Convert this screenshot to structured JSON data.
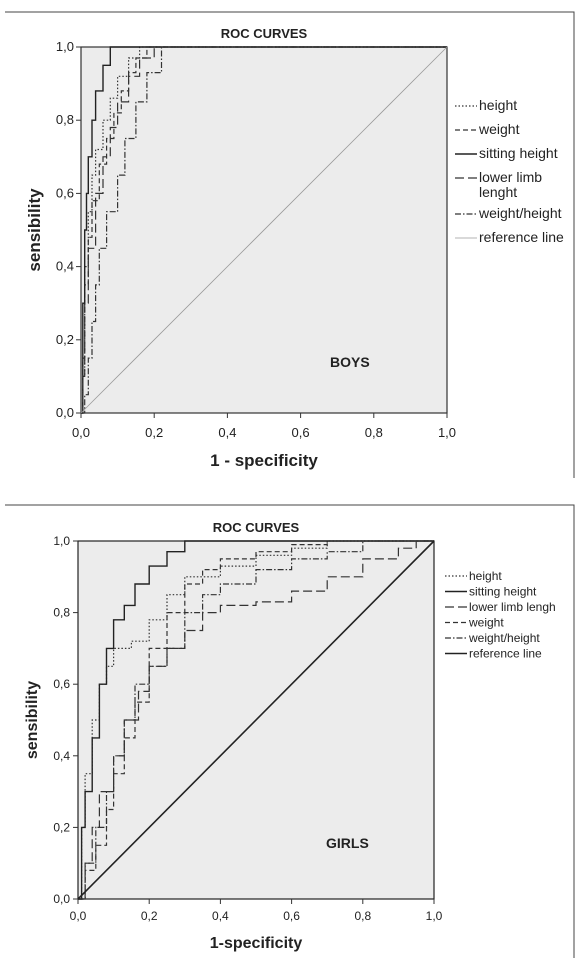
{
  "chart_data": [
    {
      "type": "line",
      "title": "ROC CURVES",
      "xlabel": "1 - specificity",
      "ylabel": "sensibility",
      "annotation": "BOYS",
      "xlim": [
        0,
        1
      ],
      "ylim": [
        0,
        1
      ],
      "xticks": [
        "0,0",
        "0,2",
        "0,4",
        "0,6",
        "0,8",
        "1,0"
      ],
      "yticks": [
        "0,0",
        "0,2",
        "0,4",
        "0,6",
        "0,8",
        "1,0"
      ],
      "grid": false,
      "legend_position": "right",
      "series": [
        {
          "name": "height",
          "dash": "dot",
          "points": [
            [
              0,
              0
            ],
            [
              0.005,
              0.1
            ],
            [
              0.01,
              0.4
            ],
            [
              0.02,
              0.55
            ],
            [
              0.03,
              0.65
            ],
            [
              0.04,
              0.72
            ],
            [
              0.06,
              0.8
            ],
            [
              0.08,
              0.86
            ],
            [
              0.1,
              0.92
            ],
            [
              0.13,
              0.97
            ],
            [
              0.16,
              1
            ],
            [
              1,
              1
            ]
          ]
        },
        {
          "name": "weight",
          "dash": "dash",
          "points": [
            [
              0,
              0
            ],
            [
              0.005,
              0.15
            ],
            [
              0.01,
              0.35
            ],
            [
              0.02,
              0.48
            ],
            [
              0.03,
              0.58
            ],
            [
              0.05,
              0.68
            ],
            [
              0.07,
              0.75
            ],
            [
              0.09,
              0.82
            ],
            [
              0.11,
              0.88
            ],
            [
              0.13,
              0.93
            ],
            [
              0.15,
              0.97
            ],
            [
              0.18,
              1
            ],
            [
              1,
              1
            ]
          ]
        },
        {
          "name": "sitting height",
          "dash": "solid",
          "points": [
            [
              0,
              0
            ],
            [
              0.005,
              0.3
            ],
            [
              0.01,
              0.5
            ],
            [
              0.015,
              0.6
            ],
            [
              0.02,
              0.7
            ],
            [
              0.03,
              0.8
            ],
            [
              0.04,
              0.88
            ],
            [
              0.06,
              0.95
            ],
            [
              0.08,
              1
            ],
            [
              1,
              1
            ]
          ]
        },
        {
          "name": "lower limb lenght",
          "dash": "longdash",
          "points": [
            [
              0,
              0
            ],
            [
              0.005,
              0.1
            ],
            [
              0.01,
              0.3
            ],
            [
              0.02,
              0.45
            ],
            [
              0.04,
              0.6
            ],
            [
              0.06,
              0.7
            ],
            [
              0.08,
              0.78
            ],
            [
              0.1,
              0.85
            ],
            [
              0.13,
              0.92
            ],
            [
              0.16,
              0.97
            ],
            [
              0.2,
              1
            ],
            [
              1,
              1
            ]
          ]
        },
        {
          "name": "weight/height",
          "dash": "dashdot",
          "points": [
            [
              0,
              0
            ],
            [
              0.01,
              0.05
            ],
            [
              0.02,
              0.15
            ],
            [
              0.03,
              0.25
            ],
            [
              0.04,
              0.35
            ],
            [
              0.05,
              0.45
            ],
            [
              0.07,
              0.55
            ],
            [
              0.1,
              0.65
            ],
            [
              0.12,
              0.75
            ],
            [
              0.15,
              0.85
            ],
            [
              0.18,
              0.93
            ],
            [
              0.22,
              1
            ],
            [
              1,
              1
            ]
          ]
        },
        {
          "name": "reference line",
          "dash": "thin",
          "points": [
            [
              0,
              0
            ],
            [
              1,
              1
            ]
          ]
        }
      ]
    },
    {
      "type": "line",
      "title": "ROC CURVES",
      "xlabel": "1-specificity",
      "ylabel": "sensibility",
      "annotation": "GIRLS",
      "xlim": [
        0,
        1
      ],
      "ylim": [
        0,
        1
      ],
      "xticks": [
        "0,0",
        "0,2",
        "0,4",
        "0,6",
        "0,8",
        "1,0"
      ],
      "yticks": [
        "0,0",
        "0,2",
        "0,4",
        "0,6",
        "0,8",
        "1,0"
      ],
      "grid": false,
      "legend_position": "right",
      "series": [
        {
          "name": "height",
          "dash": "dot",
          "points": [
            [
              0,
              0
            ],
            [
              0.01,
              0.2
            ],
            [
              0.02,
              0.35
            ],
            [
              0.04,
              0.5
            ],
            [
              0.06,
              0.6
            ],
            [
              0.08,
              0.65
            ],
            [
              0.1,
              0.7
            ],
            [
              0.15,
              0.72
            ],
            [
              0.2,
              0.78
            ],
            [
              0.25,
              0.85
            ],
            [
              0.3,
              0.9
            ],
            [
              0.4,
              0.93
            ],
            [
              0.5,
              0.96
            ],
            [
              0.6,
              0.98
            ],
            [
              0.7,
              1
            ],
            [
              1,
              1
            ]
          ]
        },
        {
          "name": "sitting height",
          "dash": "solid",
          "points": [
            [
              0,
              0
            ],
            [
              0.01,
              0.2
            ],
            [
              0.02,
              0.3
            ],
            [
              0.04,
              0.45
            ],
            [
              0.06,
              0.6
            ],
            [
              0.08,
              0.7
            ],
            [
              0.1,
              0.78
            ],
            [
              0.13,
              0.82
            ],
            [
              0.16,
              0.88
            ],
            [
              0.2,
              0.93
            ],
            [
              0.25,
              0.97
            ],
            [
              0.3,
              1
            ],
            [
              1,
              1
            ]
          ]
        },
        {
          "name": "lower limb lengh",
          "dash": "longdash",
          "points": [
            [
              0,
              0
            ],
            [
              0.02,
              0.1
            ],
            [
              0.04,
              0.2
            ],
            [
              0.06,
              0.3
            ],
            [
              0.1,
              0.4
            ],
            [
              0.13,
              0.5
            ],
            [
              0.17,
              0.58
            ],
            [
              0.2,
              0.65
            ],
            [
              0.25,
              0.7
            ],
            [
              0.3,
              0.75
            ],
            [
              0.35,
              0.8
            ],
            [
              0.4,
              0.82
            ],
            [
              0.5,
              0.83
            ],
            [
              0.6,
              0.86
            ],
            [
              0.7,
              0.9
            ],
            [
              0.8,
              0.95
            ],
            [
              0.9,
              0.98
            ],
            [
              0.95,
              1
            ],
            [
              1,
              1
            ]
          ]
        },
        {
          "name": "weight",
          "dash": "dash",
          "points": [
            [
              0,
              0
            ],
            [
              0.02,
              0.08
            ],
            [
              0.05,
              0.15
            ],
            [
              0.08,
              0.25
            ],
            [
              0.1,
              0.35
            ],
            [
              0.13,
              0.45
            ],
            [
              0.16,
              0.55
            ],
            [
              0.2,
              0.7
            ],
            [
              0.25,
              0.8
            ],
            [
              0.3,
              0.88
            ],
            [
              0.35,
              0.92
            ],
            [
              0.4,
              0.95
            ],
            [
              0.5,
              0.97
            ],
            [
              0.6,
              0.99
            ],
            [
              0.7,
              1
            ],
            [
              1,
              1
            ]
          ]
        },
        {
          "name": "weight/height",
          "dash": "dashdot",
          "points": [
            [
              0,
              0
            ],
            [
              0.02,
              0.1
            ],
            [
              0.05,
              0.2
            ],
            [
              0.08,
              0.3
            ],
            [
              0.1,
              0.4
            ],
            [
              0.13,
              0.5
            ],
            [
              0.16,
              0.6
            ],
            [
              0.2,
              0.65
            ],
            [
              0.25,
              0.7
            ],
            [
              0.3,
              0.8
            ],
            [
              0.35,
              0.85
            ],
            [
              0.4,
              0.88
            ],
            [
              0.5,
              0.92
            ],
            [
              0.6,
              0.95
            ],
            [
              0.7,
              0.97
            ],
            [
              0.8,
              1
            ],
            [
              1,
              1
            ]
          ]
        },
        {
          "name": "reference line",
          "dash": "ref",
          "points": [
            [
              0,
              0
            ],
            [
              1,
              1
            ]
          ]
        }
      ]
    }
  ]
}
